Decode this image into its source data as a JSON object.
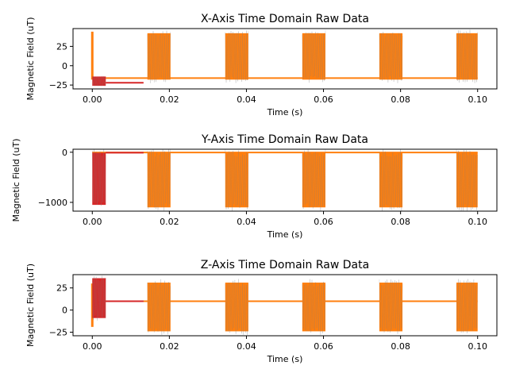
{
  "figure": {
    "colors": {
      "series_orange": "#ff7f0e",
      "series_red": "#d62728",
      "series_grey": "#7f7f7f",
      "axes": "#000000",
      "background": "#ffffff"
    }
  },
  "chart_data": [
    {
      "type": "line",
      "title": "X-Axis Time Domain Raw Data",
      "xlabel": "Time (s)",
      "ylabel": "Magnetic Field (uT)",
      "xlim": [
        -0.005,
        0.105
      ],
      "ylim": [
        -30,
        48
      ],
      "xticks": [
        0.0,
        0.02,
        0.04,
        0.06,
        0.08,
        0.1
      ],
      "xtick_labels": [
        "0.00",
        "0.02",
        "0.04",
        "0.06",
        "0.08",
        "0.10"
      ],
      "yticks": [
        25,
        0,
        -25
      ],
      "ytick_labels": [
        "25",
        "0",
        "−25"
      ],
      "grid": false,
      "legend": null,
      "series": [
        {
          "color": "#ff7f0e",
          "segments": [
            {
              "kind": "spike",
              "x": 0.0,
              "y": [
                -18,
                44
              ]
            },
            {
              "kind": "flat",
              "x": [
                0.0005,
                0.1
              ],
              "y": -16
            },
            {
              "kind": "burst",
              "x": [
                0.0143,
                0.0203
              ],
              "y": [
                -18,
                42
              ]
            },
            {
              "kind": "burst",
              "x": [
                0.0345,
                0.0405
              ],
              "y": [
                -18,
                42
              ]
            },
            {
              "kind": "burst",
              "x": [
                0.0545,
                0.0605
              ],
              "y": [
                -18,
                42
              ]
            },
            {
              "kind": "burst",
              "x": [
                0.0745,
                0.0805
              ],
              "y": [
                -18,
                42
              ]
            },
            {
              "kind": "burst",
              "x": [
                0.0945,
                0.1
              ],
              "y": [
                -18,
                42
              ]
            }
          ]
        },
        {
          "color": "#d62728",
          "segments": [
            {
              "kind": "burst",
              "x": [
                0.0,
                0.0035
              ],
              "y": [
                -26,
                -14
              ]
            },
            {
              "kind": "flat",
              "x": [
                0.0035,
                0.0133
              ],
              "y": -22
            }
          ]
        }
      ]
    },
    {
      "type": "line",
      "title": "Y-Axis Time Domain Raw Data",
      "xlabel": "Time (s)",
      "ylabel": "Magnetic Field (uT)",
      "xlim": [
        -0.005,
        0.105
      ],
      "ylim": [
        -1175,
        60
      ],
      "xticks": [
        0.0,
        0.02,
        0.04,
        0.06,
        0.08,
        0.1
      ],
      "xtick_labels": [
        "0.00",
        "0.02",
        "0.04",
        "0.06",
        "0.08",
        "0.10"
      ],
      "yticks": [
        0,
        -1000
      ],
      "ytick_labels": [
        "0",
        "−1000"
      ],
      "grid": false,
      "legend": null,
      "series": [
        {
          "color": "#ff7f0e",
          "segments": [
            {
              "kind": "flat",
              "x": [
                0.0,
                0.1
              ],
              "y": -5
            },
            {
              "kind": "burst",
              "x": [
                0.0143,
                0.0203
              ],
              "y": [
                -1100,
                -5
              ]
            },
            {
              "kind": "burst",
              "x": [
                0.0345,
                0.0405
              ],
              "y": [
                -1100,
                -5
              ]
            },
            {
              "kind": "burst",
              "x": [
                0.0545,
                0.0605
              ],
              "y": [
                -1100,
                -5
              ]
            },
            {
              "kind": "burst",
              "x": [
                0.0745,
                0.0805
              ],
              "y": [
                -1100,
                -5
              ]
            },
            {
              "kind": "burst",
              "x": [
                0.0945,
                0.1
              ],
              "y": [
                -1100,
                -5
              ]
            }
          ]
        },
        {
          "color": "#d62728",
          "segments": [
            {
              "kind": "burst",
              "x": [
                0.0,
                0.0035
              ],
              "y": [
                -1050,
                -10
              ]
            },
            {
              "kind": "flat",
              "x": [
                0.0035,
                0.0133
              ],
              "y": -10
            }
          ]
        }
      ]
    },
    {
      "type": "line",
      "title": "Z-Axis Time Domain Raw Data",
      "xlabel": "Time (s)",
      "ylabel": "Magnetic Field (uT)",
      "xlim": [
        -0.005,
        0.105
      ],
      "ylim": [
        -29,
        40
      ],
      "xticks": [
        0.0,
        0.02,
        0.04,
        0.06,
        0.08,
        0.1
      ],
      "xtick_labels": [
        "0.00",
        "0.02",
        "0.04",
        "0.06",
        "0.08",
        "0.10"
      ],
      "yticks": [
        25,
        0,
        -25
      ],
      "ytick_labels": [
        "25",
        "0",
        "−25"
      ],
      "grid": false,
      "legend": null,
      "series": [
        {
          "color": "#ff7f0e",
          "segments": [
            {
              "kind": "spike",
              "x": 0.0,
              "y": [
                -19,
                30
              ]
            },
            {
              "kind": "flat",
              "x": [
                0.0005,
                0.1
              ],
              "y": 10
            },
            {
              "kind": "burst",
              "x": [
                0.0143,
                0.0203
              ],
              "y": [
                -24,
                31
              ]
            },
            {
              "kind": "burst",
              "x": [
                0.0345,
                0.0405
              ],
              "y": [
                -24,
                31
              ]
            },
            {
              "kind": "burst",
              "x": [
                0.0545,
                0.0605
              ],
              "y": [
                -24,
                31
              ]
            },
            {
              "kind": "burst",
              "x": [
                0.0745,
                0.0805
              ],
              "y": [
                -24,
                31
              ]
            },
            {
              "kind": "burst",
              "x": [
                0.0945,
                0.1
              ],
              "y": [
                -24,
                31
              ]
            }
          ]
        },
        {
          "color": "#d62728",
          "segments": [
            {
              "kind": "burst",
              "x": [
                0.0,
                0.0035
              ],
              "y": [
                -9,
                36
              ]
            },
            {
              "kind": "flat",
              "x": [
                0.0035,
                0.0133
              ],
              "y": 10
            }
          ]
        }
      ]
    }
  ]
}
